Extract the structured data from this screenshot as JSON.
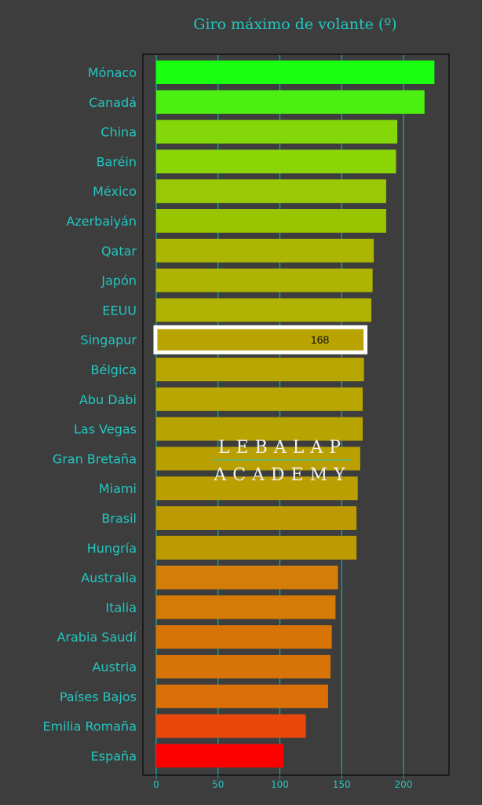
{
  "chart_data": {
    "type": "bar",
    "orientation": "horizontal",
    "title": "Giro máximo de volante (º)",
    "xlabel": "",
    "ylabel": "",
    "xlim": [
      0,
      235
    ],
    "xticks": [
      0,
      50,
      100,
      150,
      200
    ],
    "grid": true,
    "legend": "none",
    "categories": [
      "Mónaco",
      "Canadá",
      "China",
      "Baréin",
      "México",
      "Azerbaiyán",
      "Qatar",
      "Japón",
      "EEUU",
      "Singapur",
      "Bélgica",
      "Abu Dabi",
      "Las Vegas",
      "Gran Bretaña",
      "Miami",
      "Brasil",
      "Hungría",
      "Australia",
      "Italia",
      "Arabia Saudí",
      "Austria",
      "Países Bajos",
      "Emilia Romaña",
      "España"
    ],
    "values": [
      225,
      217,
      195,
      194,
      186,
      186,
      176,
      175,
      174,
      168,
      168,
      167,
      167,
      165,
      163,
      162,
      162,
      147,
      145,
      142,
      141,
      139,
      121,
      103
    ],
    "colors": [
      "#1bff10",
      "#4cf010",
      "#84d80a",
      "#8bd405",
      "#98c904",
      "#99c500",
      "#acb600",
      "#afb400",
      "#b1b200",
      "#b8a300",
      "#b8a600",
      "#b9a600",
      "#b8a400",
      "#b9a000",
      "#bb9f00",
      "#bd9b00",
      "#bd9b00",
      "#d47d08",
      "#d67a06",
      "#d87406",
      "#d87407",
      "#d96f06",
      "#e9480a",
      "#fc0000"
    ],
    "highlight": {
      "category": "Singapur",
      "label": "168"
    }
  },
  "theme": {
    "background": "#3d3d3d",
    "panel": "#3d3d3d",
    "accent": "#23c6c0",
    "grid": "#19a49f",
    "highlight_border": "#ffffff"
  },
  "watermark": {
    "line1": "LEBALAP",
    "line2": "ACADEMY"
  }
}
